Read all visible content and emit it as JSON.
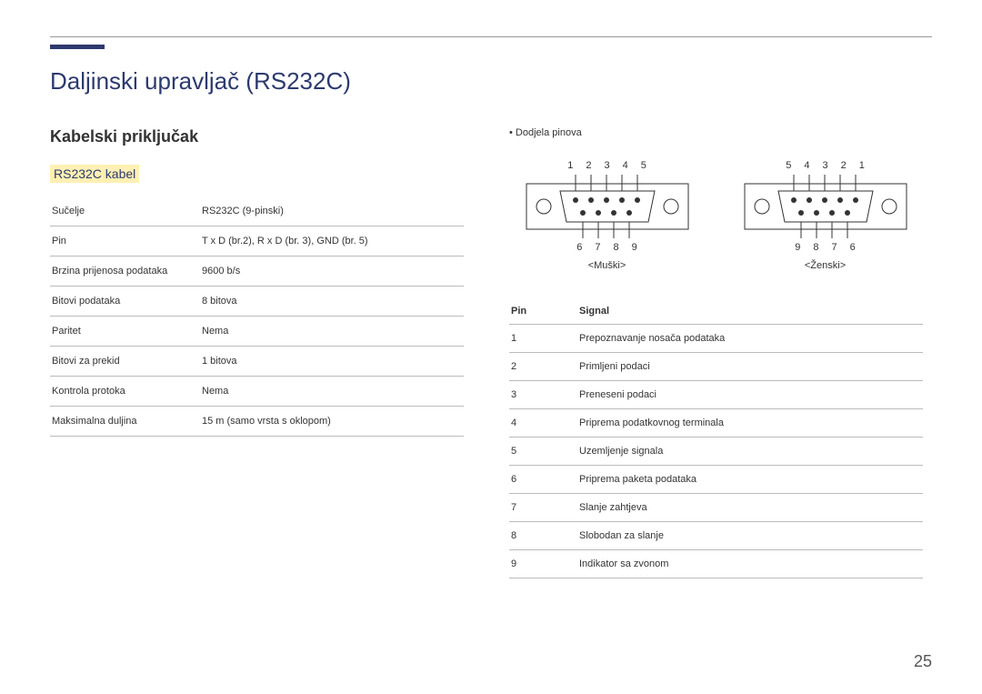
{
  "title": "Daljinski upravljač (RS232C)",
  "section": "Kabelski priključak",
  "subsection": "RS232C kabel",
  "specs": [
    {
      "label": "Sučelje",
      "value": "RS232C (9-pinski)"
    },
    {
      "label": "Pin",
      "value": "T x D (br.2), R x D (br. 3), GND (br. 5)"
    },
    {
      "label": "Brzina prijenosa podataka",
      "value": "9600 b/s"
    },
    {
      "label": "Bitovi podataka",
      "value": "8 bitova"
    },
    {
      "label": "Paritet",
      "value": "Nema"
    },
    {
      "label": "Bitovi za prekid",
      "value": "1 bitova"
    },
    {
      "label": "Kontrola protoka",
      "value": "Nema"
    },
    {
      "label": "Maksimalna duljina",
      "value": "15 m (samo vrsta s oklopom)"
    }
  ],
  "pinout_label": "Dodjela pinova",
  "male": {
    "top": [
      "1",
      "2",
      "3",
      "4",
      "5"
    ],
    "bottom": [
      "6",
      "7",
      "8",
      "9"
    ],
    "label": "<Muški>"
  },
  "female": {
    "top": [
      "5",
      "4",
      "3",
      "2",
      "1"
    ],
    "bottom": [
      "9",
      "8",
      "7",
      "6"
    ],
    "label": "<Ženski>"
  },
  "signal_headers": {
    "pin": "Pin",
    "signal": "Signal"
  },
  "signals": [
    {
      "pin": "1",
      "signal": "Prepoznavanje nosača podataka"
    },
    {
      "pin": "2",
      "signal": "Primljeni podaci"
    },
    {
      "pin": "3",
      "signal": "Preneseni podaci"
    },
    {
      "pin": "4",
      "signal": "Priprema podatkovnog terminala"
    },
    {
      "pin": "5",
      "signal": "Uzemljenje signala"
    },
    {
      "pin": "6",
      "signal": "Priprema paketa podataka"
    },
    {
      "pin": "7",
      "signal": "Slanje zahtjeva"
    },
    {
      "pin": "8",
      "signal": "Slobodan za slanje"
    },
    {
      "pin": "9",
      "signal": "Indikator sa zvonom"
    }
  ],
  "page_number": "25"
}
